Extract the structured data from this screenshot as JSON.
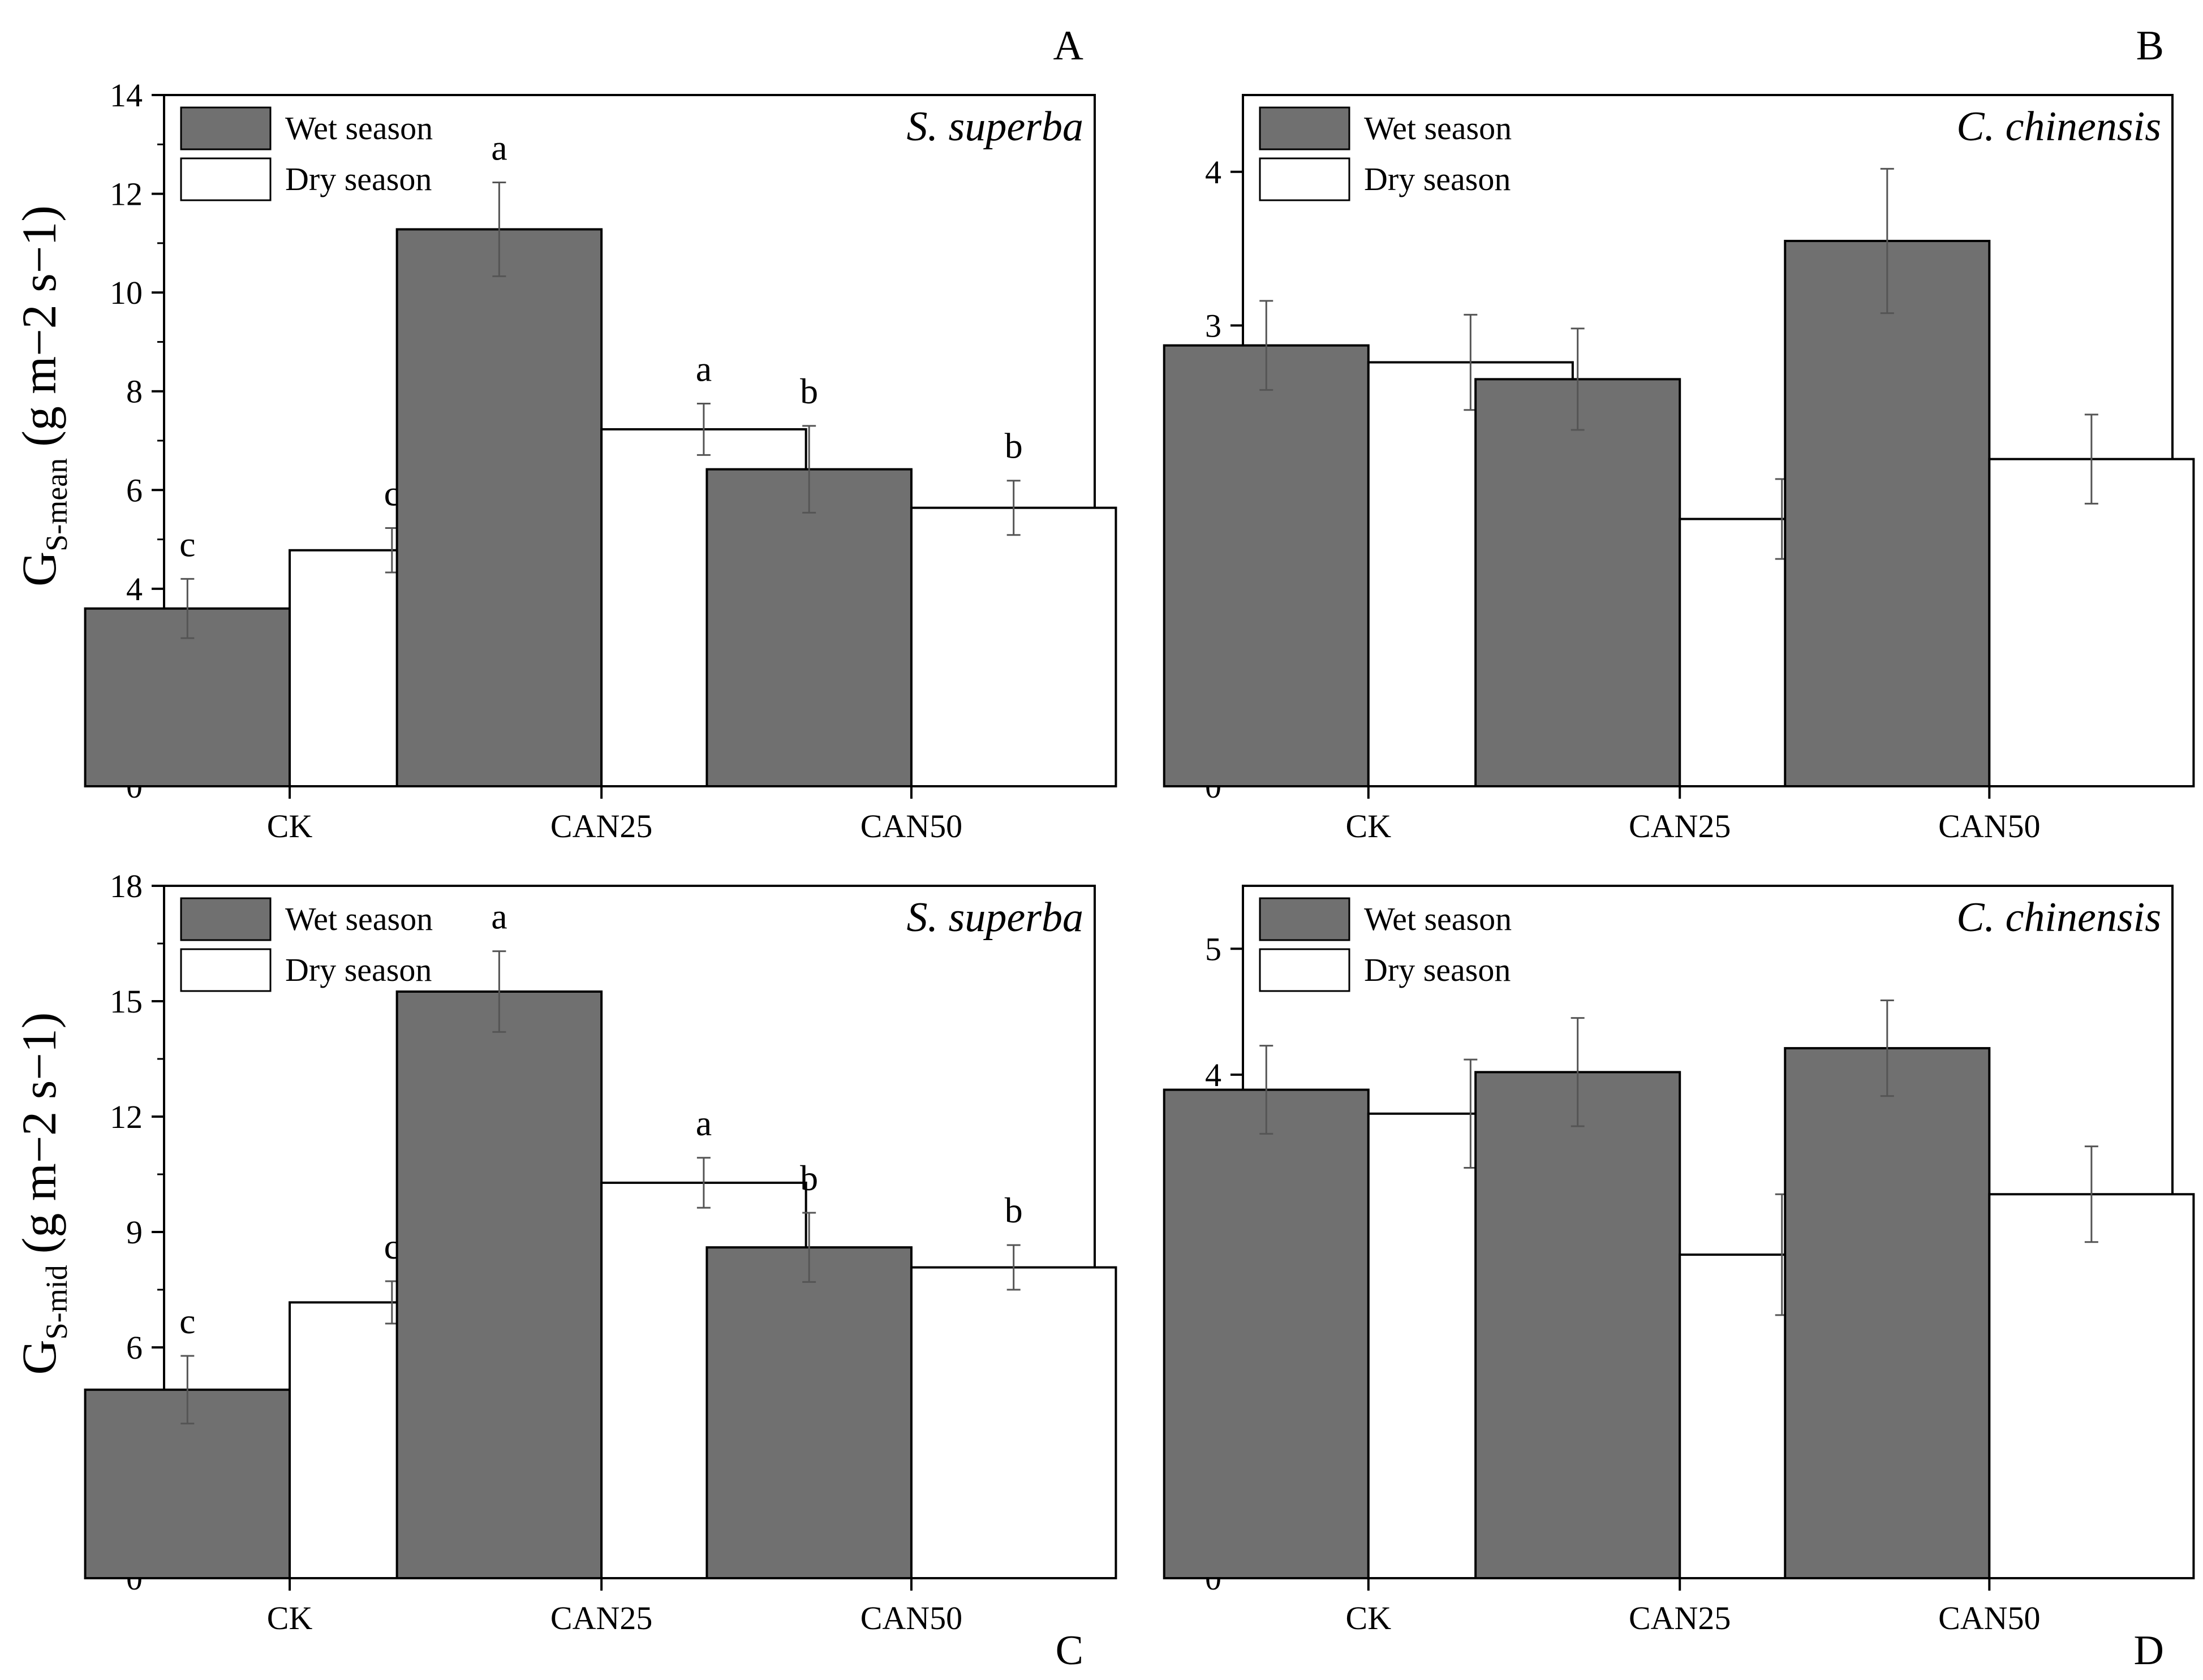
{
  "colors": {
    "wet": "#707070",
    "dry": "#ffffff",
    "axis": "#000000",
    "error_bar": "#555555"
  },
  "y_axis_labels": {
    "top": {
      "symbol": "G",
      "subscript": "S-mean",
      "units": "(g m−2 s−1)"
    },
    "bottom": {
      "symbol": "G",
      "subscript": "S-mid",
      "units": "(g m−2 s−1)"
    }
  },
  "chart_data": [
    {
      "panel": "A",
      "type": "bar",
      "species": "S. superba",
      "categories": [
        "CK",
        "CAN25",
        "CAN50"
      ],
      "ylim": [
        0,
        14
      ],
      "yticks": [
        0,
        2,
        4,
        6,
        8,
        10,
        12,
        14
      ],
      "minor_ticks": true,
      "series": [
        {
          "name": "Wet season",
          "values": [
            3.6,
            11.28,
            6.42
          ],
          "errors": [
            0.6,
            0.95,
            0.88
          ],
          "labels": [
            "c",
            "a",
            "b"
          ]
        },
        {
          "name": "Dry season",
          "values": [
            4.78,
            7.23,
            5.64
          ],
          "errors": [
            0.45,
            0.52,
            0.55
          ],
          "labels": [
            "c",
            "a",
            "b"
          ]
        }
      ]
    },
    {
      "panel": "B",
      "type": "bar",
      "species": "C. chinensis",
      "categories": [
        "CK",
        "CAN25",
        "CAN50"
      ],
      "ylim": [
        0,
        4.5
      ],
      "yticks": [
        0,
        1,
        2,
        3,
        4
      ],
      "minor_ticks": false,
      "series": [
        {
          "name": "Wet season",
          "values": [
            2.87,
            2.65,
            3.55
          ],
          "errors": [
            0.29,
            0.33,
            0.47
          ],
          "labels": [
            "",
            "",
            ""
          ]
        },
        {
          "name": "Dry season",
          "values": [
            2.76,
            1.74,
            2.13
          ],
          "errors": [
            0.31,
            0.26,
            0.29
          ],
          "labels": [
            "",
            "",
            ""
          ]
        }
      ]
    },
    {
      "panel": "C",
      "type": "bar",
      "species": "S. superba",
      "categories": [
        "CK",
        "CAN25",
        "CAN50"
      ],
      "ylim": [
        0,
        18
      ],
      "yticks": [
        0,
        3,
        6,
        9,
        12,
        15,
        18
      ],
      "minor_ticks": true,
      "series": [
        {
          "name": "Wet season",
          "values": [
            4.9,
            15.25,
            8.6
          ],
          "errors": [
            0.88,
            1.05,
            0.9
          ],
          "labels": [
            "c",
            "a",
            "b"
          ]
        },
        {
          "name": "Dry season",
          "values": [
            7.17,
            10.28,
            8.08
          ],
          "errors": [
            0.55,
            0.65,
            0.58
          ],
          "labels": [
            "c",
            "a",
            "b"
          ]
        }
      ]
    },
    {
      "panel": "D",
      "type": "bar",
      "species": "C. chinensis",
      "categories": [
        "CK",
        "CAN25",
        "CAN50"
      ],
      "ylim": [
        0,
        5.5
      ],
      "yticks": [
        0,
        1,
        2,
        3,
        4,
        5
      ],
      "minor_ticks": false,
      "series": [
        {
          "name": "Wet season",
          "values": [
            3.88,
            4.02,
            4.21
          ],
          "errors": [
            0.35,
            0.43,
            0.38
          ],
          "labels": [
            "",
            "",
            ""
          ]
        },
        {
          "name": "Dry season",
          "values": [
            3.69,
            2.57,
            3.05
          ],
          "errors": [
            0.43,
            0.48,
            0.38
          ],
          "labels": [
            "",
            "",
            ""
          ]
        }
      ]
    }
  ]
}
